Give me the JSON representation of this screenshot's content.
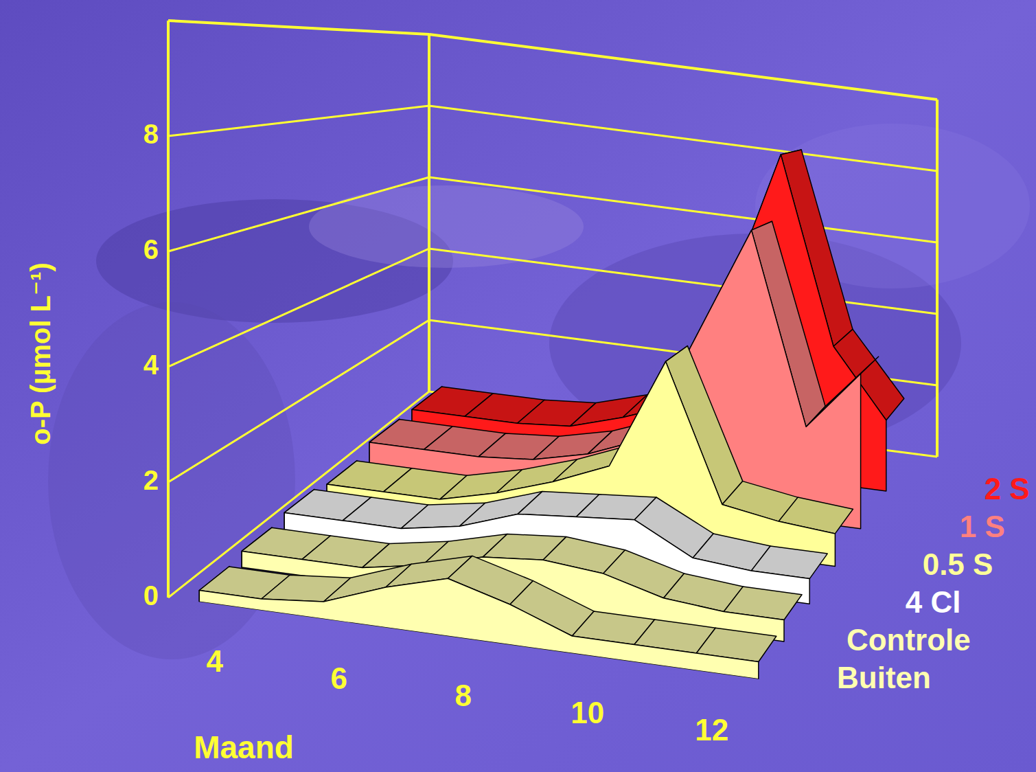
{
  "chart_data": {
    "type": "ribbon3d",
    "x_label": "Maand",
    "y_label": "o-P (µmol L⁻¹)",
    "x": [
      3,
      4,
      5,
      6,
      7,
      8,
      9,
      10,
      11,
      12
    ],
    "xlim": [
      2.5,
      12.5
    ],
    "xticks": [
      4,
      6,
      8,
      10,
      12
    ],
    "ylim": [
      0,
      10
    ],
    "yticks": [
      0,
      2,
      4,
      6,
      8
    ],
    "grid": true,
    "legend": "right",
    "series": [
      {
        "name": "Buiten",
        "color": "#ffffb0",
        "values": [
          0.2,
          0.2,
          0.3,
          0.7,
          1.0,
          0.7,
          0.3,
          0.3,
          0.3,
          0.3
        ]
      },
      {
        "name": "Controle",
        "color": "#ffffb0",
        "values": [
          0.3,
          0.3,
          0.3,
          0.5,
          0.8,
          0.9,
          0.8,
          0.5,
          0.4,
          0.4
        ]
      },
      {
        "name": "4 Cl",
        "color": "#ffffff",
        "values": [
          0.4,
          0.4,
          0.4,
          0.6,
          1.0,
          1.1,
          1.2,
          0.6,
          0.5,
          0.5
        ]
      },
      {
        "name": "0.5 S",
        "color": "#ffff99",
        "values": [
          0.3,
          0.3,
          0.3,
          0.6,
          1.0,
          1.5,
          3.9,
          1.0,
          0.8,
          0.7
        ]
      },
      {
        "name": "1 S",
        "color": "#ff8080",
        "values": [
          0.5,
          0.5,
          0.5,
          0.6,
          0.9,
          1.4,
          4.0,
          6.6,
          2.2,
          3.6
        ]
      },
      {
        "name": "2 S",
        "color": "#ff1a1a",
        "values": [
          0.5,
          0.5,
          0.5,
          0.6,
          1.0,
          1.5,
          4.5,
          8.2,
          3.5,
          1.8
        ]
      }
    ]
  }
}
